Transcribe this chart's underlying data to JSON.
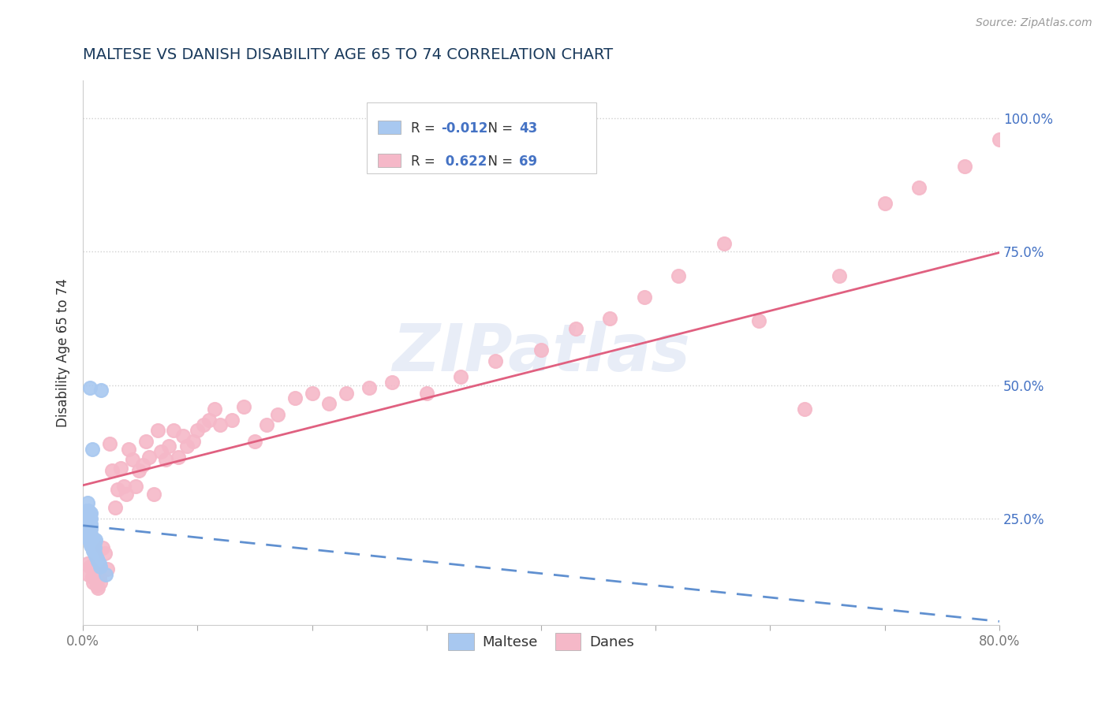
{
  "title": "MALTESE VS DANISH DISABILITY AGE 65 TO 74 CORRELATION CHART",
  "source_text": "Source: ZipAtlas.com",
  "ylabel": "Disability Age 65 to 74",
  "xlim": [
    0.0,
    0.8
  ],
  "ylim": [
    0.05,
    1.07
  ],
  "yticks": [
    0.25,
    0.5,
    0.75,
    1.0
  ],
  "yticklabels": [
    "25.0%",
    "50.0%",
    "75.0%",
    "100.0%"
  ],
  "r_maltese": -0.012,
  "n_maltese": 43,
  "r_danes": 0.622,
  "n_danes": 69,
  "maltese_color": "#a8c8f0",
  "danes_color": "#f5b8c8",
  "maltese_line_color": "#6090d0",
  "danes_line_color": "#e06080",
  "grid_color": "#d0d0d0",
  "watermark": "ZIPatlas",
  "title_color": "#1a3a5c",
  "r_color": "#4472c4",
  "bg_color": "#ffffff",
  "maltese_x": [
    0.002,
    0.003,
    0.003,
    0.004,
    0.004,
    0.004,
    0.005,
    0.005,
    0.005,
    0.005,
    0.005,
    0.005,
    0.006,
    0.006,
    0.006,
    0.006,
    0.006,
    0.006,
    0.006,
    0.007,
    0.007,
    0.007,
    0.007,
    0.007,
    0.007,
    0.007,
    0.008,
    0.008,
    0.008,
    0.008,
    0.009,
    0.009,
    0.01,
    0.01,
    0.01,
    0.011,
    0.011,
    0.012,
    0.013,
    0.014,
    0.015,
    0.016,
    0.02
  ],
  "maltese_y": [
    0.23,
    0.245,
    0.265,
    0.24,
    0.26,
    0.28,
    0.215,
    0.225,
    0.235,
    0.245,
    0.255,
    0.265,
    0.205,
    0.215,
    0.225,
    0.235,
    0.245,
    0.255,
    0.495,
    0.2,
    0.21,
    0.22,
    0.23,
    0.24,
    0.25,
    0.26,
    0.195,
    0.205,
    0.215,
    0.38,
    0.19,
    0.2,
    0.185,
    0.195,
    0.205,
    0.18,
    0.21,
    0.175,
    0.17,
    0.165,
    0.16,
    0.49,
    0.145
  ],
  "danes_x": [
    0.004,
    0.005,
    0.006,
    0.008,
    0.009,
    0.01,
    0.012,
    0.013,
    0.014,
    0.015,
    0.017,
    0.019,
    0.021,
    0.023,
    0.025,
    0.028,
    0.03,
    0.033,
    0.036,
    0.038,
    0.04,
    0.043,
    0.046,
    0.049,
    0.052,
    0.055,
    0.058,
    0.062,
    0.065,
    0.068,
    0.072,
    0.075,
    0.079,
    0.083,
    0.087,
    0.091,
    0.096,
    0.1,
    0.105,
    0.11,
    0.115,
    0.12,
    0.13,
    0.14,
    0.15,
    0.16,
    0.17,
    0.185,
    0.2,
    0.215,
    0.23,
    0.25,
    0.27,
    0.3,
    0.33,
    0.36,
    0.4,
    0.43,
    0.46,
    0.49,
    0.52,
    0.56,
    0.59,
    0.63,
    0.66,
    0.7,
    0.73,
    0.77,
    0.8
  ],
  "danes_y": [
    0.165,
    0.145,
    0.16,
    0.14,
    0.13,
    0.15,
    0.125,
    0.12,
    0.14,
    0.13,
    0.195,
    0.185,
    0.155,
    0.39,
    0.34,
    0.27,
    0.305,
    0.345,
    0.31,
    0.295,
    0.38,
    0.36,
    0.31,
    0.34,
    0.35,
    0.395,
    0.365,
    0.295,
    0.415,
    0.375,
    0.36,
    0.385,
    0.415,
    0.365,
    0.405,
    0.385,
    0.395,
    0.415,
    0.425,
    0.435,
    0.455,
    0.425,
    0.435,
    0.46,
    0.395,
    0.425,
    0.445,
    0.475,
    0.485,
    0.465,
    0.485,
    0.495,
    0.505,
    0.485,
    0.515,
    0.545,
    0.565,
    0.605,
    0.625,
    0.665,
    0.705,
    0.765,
    0.62,
    0.455,
    0.705,
    0.84,
    0.87,
    0.91,
    0.96
  ]
}
